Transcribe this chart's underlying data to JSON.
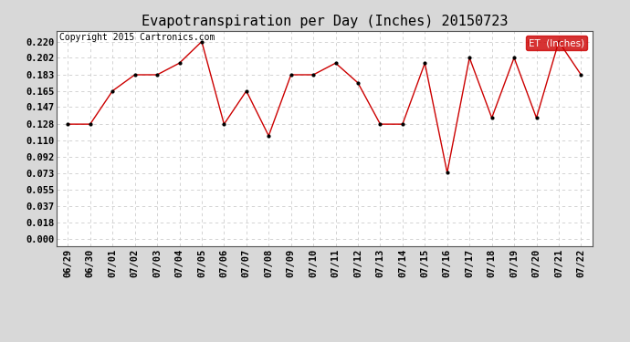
{
  "title": "Evapotranspiration per Day (Inches) 20150723",
  "copyright_text": "Copyright 2015 Cartronics.com",
  "legend_label": "ET  (Inches)",
  "dates": [
    "06/29",
    "06/30",
    "07/01",
    "07/02",
    "07/03",
    "07/04",
    "07/05",
    "07/06",
    "07/07",
    "07/08",
    "07/09",
    "07/10",
    "07/11",
    "07/12",
    "07/13",
    "07/14",
    "07/15",
    "07/16",
    "07/17",
    "07/18",
    "07/19",
    "07/20",
    "07/21",
    "07/22"
  ],
  "values": [
    0.128,
    0.128,
    0.165,
    0.183,
    0.183,
    0.196,
    0.22,
    0.128,
    0.165,
    0.115,
    0.183,
    0.183,
    0.196,
    0.174,
    0.128,
    0.128,
    0.196,
    0.074,
    0.202,
    0.135,
    0.202,
    0.135,
    0.22,
    0.183
  ],
  "line_color": "#cc0000",
  "marker_color": "#000000",
  "fig_bg_color": "#d8d8d8",
  "plot_bg_color": "#ffffff",
  "grid_color": "#cccccc",
  "yticks": [
    0.0,
    0.018,
    0.037,
    0.055,
    0.073,
    0.092,
    0.11,
    0.128,
    0.147,
    0.165,
    0.183,
    0.202,
    0.22
  ],
  "ylim": [
    -0.008,
    0.232
  ],
  "title_fontsize": 11,
  "tick_fontsize": 7.5,
  "copyright_fontsize": 7,
  "legend_bg_color": "#cc0000",
  "legend_text_color": "#ffffff"
}
